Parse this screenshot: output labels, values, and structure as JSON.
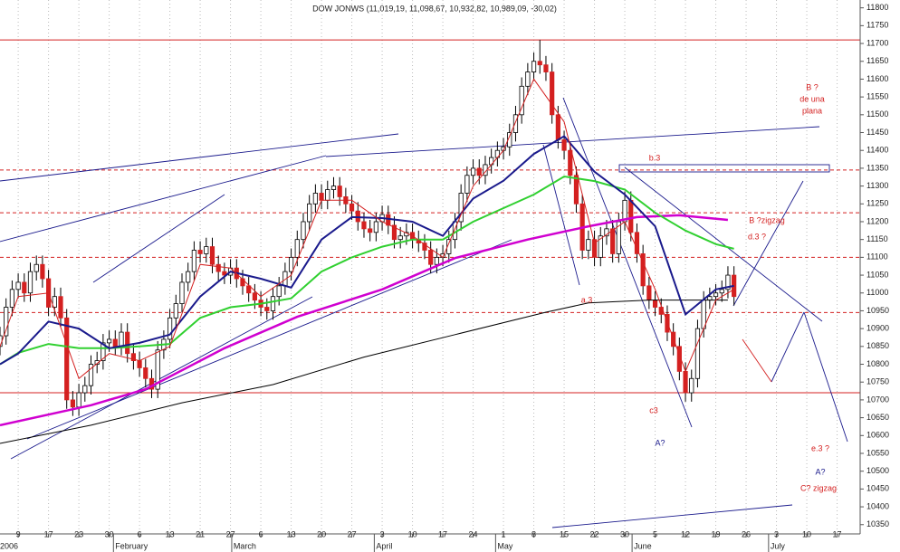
{
  "chart_data": {
    "type": "candlestick",
    "title": "DOW JONWS (11,019,19, 11,098,67, 10,932,82, 10,989,09, -30,02)",
    "xlim": [
      -3,
      138.8
    ],
    "ylim": [
      10324,
      11822
    ],
    "yticks": [
      10350,
      10400,
      10450,
      10500,
      10550,
      10600,
      10650,
      10700,
      10750,
      10800,
      10850,
      10900,
      10950,
      11000,
      11050,
      11100,
      11150,
      11200,
      11250,
      11300,
      11350,
      11400,
      11450,
      11500,
      11550,
      11600,
      11650,
      11700,
      11750,
      11800
    ],
    "xticks": [
      {
        "value": 0,
        "label": "9"
      },
      {
        "value": 5,
        "label": "17"
      },
      {
        "value": 10,
        "label": "23"
      },
      {
        "value": 15,
        "label": "30"
      },
      {
        "value": 20,
        "label": "6"
      },
      {
        "value": 25,
        "label": "13"
      },
      {
        "value": 30,
        "label": "21"
      },
      {
        "value": 35,
        "label": "27"
      },
      {
        "value": 40,
        "label": "6"
      },
      {
        "value": 45,
        "label": "13"
      },
      {
        "value": 50,
        "label": "20"
      },
      {
        "value": 55,
        "label": "27"
      },
      {
        "value": 60,
        "label": "3"
      },
      {
        "value": 65,
        "label": "10"
      },
      {
        "value": 70,
        "label": "17"
      },
      {
        "value": 75,
        "label": "24"
      },
      {
        "value": 80,
        "label": "1"
      },
      {
        "value": 85,
        "label": "8"
      },
      {
        "value": 90,
        "label": "15"
      },
      {
        "value": 95,
        "label": "22"
      },
      {
        "value": 100,
        "label": "30"
      },
      {
        "value": 105,
        "label": "5"
      },
      {
        "value": 110,
        "label": "12"
      },
      {
        "value": 115,
        "label": "19"
      },
      {
        "value": 120,
        "label": "26"
      },
      {
        "value": 125,
        "label": "3"
      },
      {
        "value": 130,
        "label": "10"
      },
      {
        "value": 135,
        "label": "17"
      }
    ],
    "month_labels": [
      {
        "value": -3,
        "label": "2006"
      },
      {
        "value": 16,
        "label": "February"
      },
      {
        "value": 35.5,
        "label": "March"
      },
      {
        "value": 59,
        "label": "April"
      },
      {
        "value": 79,
        "label": "May"
      },
      {
        "value": 101.5,
        "label": "June"
      },
      {
        "value": 124,
        "label": "July"
      }
    ],
    "up_color": "#ffffff",
    "down_color": "#d42020",
    "x": [
      -3,
      -2,
      -1,
      0,
      1,
      2,
      3,
      4,
      5,
      6,
      7,
      8,
      9,
      10,
      11,
      12,
      13,
      14,
      15,
      16,
      17,
      18,
      19,
      20,
      21,
      22,
      23,
      24,
      25,
      26,
      27,
      28,
      29,
      30,
      31,
      32,
      33,
      34,
      35,
      36,
      37,
      38,
      39,
      40,
      41,
      42,
      43,
      44,
      45,
      46,
      47,
      48,
      49,
      50,
      51,
      52,
      53,
      54,
      55,
      56,
      57,
      58,
      59,
      60,
      61,
      62,
      63,
      64,
      65,
      66,
      67,
      68,
      69,
      70,
      71,
      72,
      73,
      74,
      75,
      76,
      77,
      78,
      79,
      80,
      81,
      82,
      83,
      84,
      85,
      86,
      87,
      88,
      89,
      90,
      91,
      92,
      93,
      94,
      95,
      96,
      97,
      98,
      99,
      100,
      101,
      102,
      103,
      104,
      105,
      106,
      107,
      108,
      109,
      110,
      111,
      112,
      113,
      114,
      115,
      116,
      117,
      118
    ],
    "ohlc": [
      [
        10850,
        10905,
        10825,
        10880
      ],
      [
        10880,
        10985,
        10855,
        10960
      ],
      [
        10960,
        11035,
        10935,
        11010
      ],
      [
        11010,
        11055,
        10985,
        11030
      ],
      [
        11030,
        11055,
        10975,
        11000
      ],
      [
        11000,
        11085,
        10975,
        11060
      ],
      [
        11060,
        11105,
        11035,
        11080
      ],
      [
        11080,
        11105,
        11015,
        11040
      ],
      [
        11040,
        11065,
        10935,
        10960
      ],
      [
        10960,
        11015,
        10935,
        10990
      ],
      [
        10990,
        11015,
        10905,
        10930
      ],
      [
        10930,
        10955,
        10675,
        10700
      ],
      [
        10700,
        10725,
        10655,
        10680
      ],
      [
        10680,
        10745,
        10655,
        10720
      ],
      [
        10720,
        10765,
        10695,
        10740
      ],
      [
        10740,
        10825,
        10715,
        10800
      ],
      [
        10800,
        10835,
        10775,
        10810
      ],
      [
        10810,
        10885,
        10785,
        10860
      ],
      [
        10860,
        10895,
        10835,
        10870
      ],
      [
        10870,
        10895,
        10825,
        10850
      ],
      [
        10850,
        10915,
        10825,
        10890
      ],
      [
        10890,
        10915,
        10805,
        10830
      ],
      [
        10830,
        10855,
        10785,
        10810
      ],
      [
        10810,
        10835,
        10765,
        10790
      ],
      [
        10790,
        10815,
        10735,
        10760
      ],
      [
        10760,
        10785,
        10705,
        10730
      ],
      [
        10730,
        10865,
        10705,
        10840
      ],
      [
        10840,
        10895,
        10815,
        10870
      ],
      [
        10870,
        10955,
        10845,
        10930
      ],
      [
        10930,
        10995,
        10905,
        10970
      ],
      [
        10970,
        11055,
        10945,
        11030
      ],
      [
        11030,
        11085,
        11005,
        11060
      ],
      [
        11060,
        11145,
        11035,
        11120
      ],
      [
        11120,
        11145,
        11085,
        11110
      ],
      [
        11110,
        11155,
        11085,
        11130
      ],
      [
        11130,
        11155,
        11055,
        11080
      ],
      [
        11080,
        11105,
        11035,
        11060
      ],
      [
        11060,
        11085,
        11025,
        11050
      ],
      [
        11050,
        11095,
        11025,
        11070
      ],
      [
        11070,
        11095,
        11015,
        11040
      ],
      [
        11040,
        11065,
        10995,
        11020
      ],
      [
        11020,
        11045,
        10975,
        11000
      ],
      [
        11000,
        11025,
        10955,
        10980
      ],
      [
        10980,
        11005,
        10935,
        10960
      ],
      [
        10960,
        10985,
        10925,
        10950
      ],
      [
        10950,
        11015,
        10925,
        10990
      ],
      [
        10990,
        11045,
        10965,
        11020
      ],
      [
        11020,
        11085,
        10995,
        11060
      ],
      [
        11060,
        11125,
        11035,
        11100
      ],
      [
        11100,
        11175,
        11075,
        11150
      ],
      [
        11150,
        11225,
        11125,
        11200
      ],
      [
        11200,
        11275,
        11175,
        11250
      ],
      [
        11250,
        11305,
        11225,
        11280
      ],
      [
        11280,
        11305,
        11235,
        11260
      ],
      [
        11260,
        11315,
        11235,
        11290
      ],
      [
        11290,
        11325,
        11265,
        11300
      ],
      [
        11300,
        11325,
        11245,
        11270
      ],
      [
        11270,
        11295,
        11225,
        11250
      ],
      [
        11250,
        11275,
        11205,
        11230
      ],
      [
        11230,
        11255,
        11175,
        11200
      ],
      [
        11200,
        11225,
        11155,
        11180
      ],
      [
        11180,
        11205,
        11145,
        11170
      ],
      [
        11170,
        11225,
        11145,
        11200
      ],
      [
        11200,
        11245,
        11175,
        11220
      ],
      [
        11220,
        11245,
        11165,
        11190
      ],
      [
        11190,
        11215,
        11125,
        11150
      ],
      [
        11150,
        11185,
        11125,
        11160
      ],
      [
        11160,
        11195,
        11135,
        11170
      ],
      [
        11170,
        11195,
        11125,
        11150
      ],
      [
        11150,
        11175,
        11115,
        11140
      ],
      [
        11140,
        11165,
        11095,
        11120
      ],
      [
        11120,
        11145,
        11055,
        11080
      ],
      [
        11080,
        11125,
        11055,
        11100
      ],
      [
        11100,
        11135,
        11075,
        11110
      ],
      [
        11110,
        11175,
        11085,
        11150
      ],
      [
        11150,
        11225,
        11125,
        11200
      ],
      [
        11200,
        11305,
        11175,
        11280
      ],
      [
        11280,
        11355,
        11255,
        11330
      ],
      [
        11330,
        11375,
        11305,
        11350
      ],
      [
        11350,
        11375,
        11305,
        11330
      ],
      [
        11330,
        11385,
        11305,
        11360
      ],
      [
        11360,
        11405,
        11335,
        11380
      ],
      [
        11380,
        11425,
        11355,
        11400
      ],
      [
        11400,
        11435,
        11375,
        11410
      ],
      [
        11410,
        11475,
        11385,
        11450
      ],
      [
        11450,
        11525,
        11425,
        11500
      ],
      [
        11500,
        11605,
        11475,
        11580
      ],
      [
        11580,
        11645,
        11555,
        11620
      ],
      [
        11620,
        11675,
        11595,
        11650
      ],
      [
        11650,
        11710,
        11615,
        11640
      ],
      [
        11640,
        11665,
        11595,
        11620
      ],
      [
        11620,
        11645,
        11475,
        11500
      ],
      [
        11500,
        11525,
        11405,
        11430
      ],
      [
        11430,
        11455,
        11375,
        11400
      ],
      [
        11400,
        11425,
        11305,
        11330
      ],
      [
        11330,
        11355,
        11225,
        11250
      ],
      [
        11250,
        11275,
        11095,
        11120
      ],
      [
        11120,
        11175,
        11095,
        11150
      ],
      [
        11150,
        11175,
        11075,
        11100
      ],
      [
        11100,
        11185,
        11075,
        11160
      ],
      [
        11160,
        11205,
        11135,
        11180
      ],
      [
        11180,
        11205,
        11085,
        11110
      ],
      [
        11110,
        11225,
        11085,
        11200
      ],
      [
        11200,
        11285,
        11175,
        11260
      ],
      [
        11260,
        11285,
        11145,
        11170
      ],
      [
        11170,
        11195,
        11085,
        11110
      ],
      [
        11110,
        11135,
        10995,
        11020
      ],
      [
        11020,
        11045,
        10955,
        10980
      ],
      [
        10980,
        11005,
        10935,
        10960
      ],
      [
        10960,
        10985,
        10915,
        10940
      ],
      [
        10940,
        10965,
        10865,
        10890
      ],
      [
        10890,
        10915,
        10825,
        10850
      ],
      [
        10850,
        10875,
        10755,
        10780
      ],
      [
        10780,
        10805,
        10695,
        10720
      ],
      [
        10720,
        10785,
        10695,
        10760
      ],
      [
        10760,
        10925,
        10735,
        10900
      ],
      [
        10900,
        11005,
        10875,
        10980
      ],
      [
        10980,
        11015,
        10955,
        10990
      ],
      [
        10990,
        11025,
        10965,
        11000
      ],
      [
        11000,
        11035,
        10975,
        11010
      ],
      [
        11010,
        11075,
        10985,
        11050
      ],
      [
        11050,
        11075,
        10965,
        10990
      ]
    ],
    "series": [
      {
        "color": "#000000",
        "width": 1,
        "x": [
          -3,
          12,
          27,
          42,
          57,
          72,
          87,
          94,
          104,
          117
        ],
        "values": [
          10578,
          10629,
          10692,
          10743,
          10820,
          10883,
          10946,
          10972,
          10980,
          10980
        ]
      },
      {
        "color": "#d000d0",
        "width": 2.5,
        "x": [
          -3,
          12,
          21,
          34,
          46,
          60,
          72,
          84,
          94,
          102,
          109,
          117
        ],
        "values": [
          10629,
          10685,
          10730,
          10845,
          10933,
          11010,
          11098,
          11150,
          11187,
          11213,
          11218,
          11205
        ]
      },
      {
        "color": "#30d030",
        "width": 2,
        "x": [
          -3,
          0,
          5,
          10,
          15,
          20,
          25,
          30,
          35,
          40,
          45,
          50,
          55,
          60,
          65,
          70,
          75,
          80,
          85,
          90,
          95,
          100,
          105,
          110,
          115,
          118
        ],
        "values": [
          10800,
          10832,
          10857,
          10845,
          10845,
          10850,
          10857,
          10930,
          10960,
          10970,
          10985,
          11060,
          11100,
          11130,
          11150,
          11150,
          11200,
          11238,
          11276,
          11327,
          11314,
          11290,
          11225,
          11175,
          11137,
          11124
        ]
      },
      {
        "color": "#1a1a8c",
        "width": 2,
        "x": [
          -3,
          0,
          5,
          10,
          15,
          20,
          25,
          30,
          35,
          40,
          45,
          50,
          55,
          60,
          65,
          70,
          75,
          80,
          85,
          90,
          95,
          100,
          105,
          110,
          115,
          118
        ],
        "values": [
          10800,
          10830,
          10920,
          10900,
          10845,
          10860,
          10883,
          10990,
          11060,
          11040,
          11015,
          11150,
          11213,
          11210,
          11200,
          11160,
          11265,
          11315,
          11390,
          11440,
          11340,
          11276,
          11187,
          10940,
          11010,
          11020
        ]
      },
      {
        "color": "#d42020",
        "width": 1,
        "x": [
          -3,
          0,
          5,
          10,
          15,
          20,
          25,
          30,
          35,
          40,
          45,
          50,
          55,
          60,
          65,
          70,
          75,
          80,
          85,
          90,
          95,
          100,
          105,
          110,
          115,
          118
        ],
        "values": [
          10850,
          10990,
          11000,
          10760,
          10830,
          10810,
          10850,
          11080,
          11070,
          10990,
          11050,
          11260,
          11260,
          11200,
          11160,
          11100,
          11300,
          11400,
          11600,
          11480,
          11140,
          11200,
          11010,
          10780,
          10980,
          11010
        ]
      }
    ],
    "hlines": [
      11710,
      10720
    ],
    "dashed_hlines": [
      11345,
      11225,
      11100,
      10945
    ],
    "line_color": "#d42020",
    "annotations": [
      [
        "b.3"
      ],
      [
        "B ?",
        "de una",
        "plana"
      ],
      [
        "B ?zigzag"
      ],
      [
        "d.3 ?"
      ],
      [
        "a.3"
      ],
      [
        "c3"
      ],
      [
        "A?"
      ],
      [
        "e.3 ?"
      ],
      [
        "A?"
      ],
      [
        "C? zigzag"
      ]
    ]
  }
}
